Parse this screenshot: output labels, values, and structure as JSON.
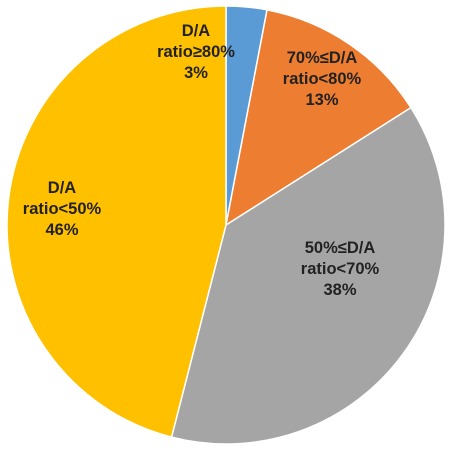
{
  "chart_data": {
    "type": "pie",
    "title": "",
    "start_angle_deg": 0,
    "direction": "clockwise",
    "slices": [
      {
        "name": "D/A ratio≥80%",
        "value": 3,
        "color": "#5B9BD5",
        "label_lines": [
          "D/A",
          "ratio≥80%",
          "3%"
        ]
      },
      {
        "name": "70%≤D/A ratio<80%",
        "value": 13,
        "color": "#ED7D31",
        "label_lines": [
          "70%≤D/A",
          "ratio<80%",
          "13%"
        ]
      },
      {
        "name": "50%≤D/A ratio<70%",
        "value": 38,
        "color": "#A5A5A5",
        "label_lines": [
          "50%≤D/A",
          "ratio<70%",
          "38%"
        ]
      },
      {
        "name": "D/A ratio<50%",
        "value": 46,
        "color": "#FFC000",
        "label_lines": [
          "D/A",
          "ratio<50%",
          "46%"
        ]
      }
    ]
  }
}
